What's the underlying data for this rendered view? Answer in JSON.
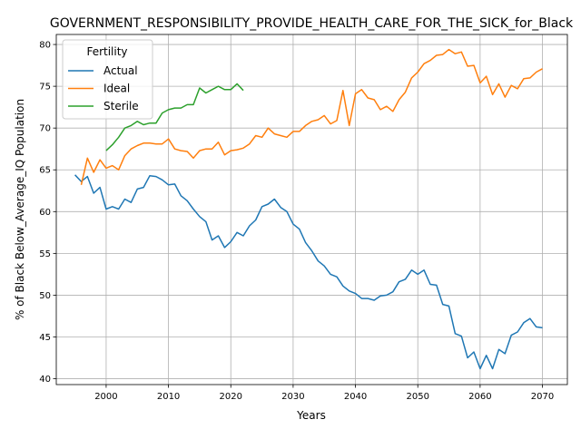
{
  "chart_data": {
    "type": "line",
    "title": "GOVERNMENT_RESPONSIBILITY_PROVIDE_HEALTH_CARE_FOR_THE_SICK_for_Black",
    "xlabel": "Years",
    "ylabel": "% of Black Below_Average_IQ Population",
    "xlim": [
      1992,
      2074
    ],
    "ylim": [
      39.3,
      81.2
    ],
    "xticks": [
      2000,
      2010,
      2020,
      2030,
      2040,
      2050,
      2060,
      2070
    ],
    "yticks": [
      40,
      45,
      50,
      55,
      60,
      65,
      70,
      75,
      80
    ],
    "grid": true,
    "legend": {
      "title": "Fertility",
      "placement": "top-left"
    },
    "series": [
      {
        "name": "Actual",
        "color": "#1f77b4",
        "x": [
          1995,
          1996,
          1997,
          1998,
          1999,
          2000,
          2001,
          2002,
          2003,
          2004,
          2005,
          2006,
          2007,
          2008,
          2009,
          2010,
          2011,
          2012,
          2013,
          2014,
          2015,
          2016,
          2017,
          2018,
          2019,
          2020,
          2021,
          2022,
          2023,
          2024,
          2025,
          2026,
          2027,
          2028,
          2029,
          2030,
          2031,
          2032,
          2033,
          2034,
          2035,
          2036,
          2037,
          2038,
          2039,
          2040,
          2041,
          2042,
          2043,
          2044,
          2045,
          2046,
          2047,
          2048,
          2049,
          2050,
          2051,
          2052,
          2053,
          2054,
          2055,
          2056,
          2057,
          2058,
          2059,
          2060,
          2061,
          2062,
          2063,
          2064,
          2065,
          2066,
          2067,
          2068,
          2069,
          2070
        ],
        "y": [
          64.4,
          63.6,
          64.2,
          62.2,
          62.9,
          60.3,
          60.6,
          60.3,
          61.5,
          61.1,
          62.7,
          62.9,
          64.3,
          64.2,
          63.8,
          63.2,
          63.3,
          61.9,
          61.3,
          60.3,
          59.4,
          58.8,
          56.6,
          57.1,
          55.7,
          56.4,
          57.5,
          57.1,
          58.3,
          59.0,
          60.6,
          60.9,
          61.5,
          60.5,
          60.0,
          58.5,
          57.9,
          56.3,
          55.3,
          54.1,
          53.5,
          52.5,
          52.2,
          51.1,
          50.5,
          50.2,
          49.6,
          49.6,
          49.4,
          49.9,
          50.0,
          50.4,
          51.6,
          51.9,
          53.0,
          52.5,
          53.0,
          51.3,
          51.2,
          48.9,
          48.7,
          45.4,
          45.1,
          42.5,
          43.2,
          41.2,
          42.8,
          41.2,
          43.5,
          43.0,
          45.2,
          45.6,
          46.7,
          47.2,
          46.2,
          46.1
        ]
      },
      {
        "name": "Ideal",
        "color": "#ff7f0e",
        "x": [
          1996,
          1997,
          1998,
          1999,
          2000,
          2001,
          2002,
          2003,
          2004,
          2005,
          2006,
          2007,
          2008,
          2009,
          2010,
          2011,
          2012,
          2013,
          2014,
          2015,
          2016,
          2017,
          2018,
          2019,
          2020,
          2021,
          2022,
          2023,
          2024,
          2025,
          2026,
          2027,
          2028,
          2029,
          2030,
          2031,
          2032,
          2033,
          2034,
          2035,
          2036,
          2037,
          2038,
          2039,
          2040,
          2041,
          2042,
          2043,
          2044,
          2045,
          2046,
          2047,
          2048,
          2049,
          2050,
          2051,
          2052,
          2053,
          2054,
          2055,
          2056,
          2057,
          2058,
          2059,
          2060,
          2061,
          2062,
          2063,
          2064,
          2065,
          2066,
          2067,
          2068,
          2069,
          2070
        ],
        "y": [
          63.2,
          66.4,
          64.7,
          66.2,
          65.2,
          65.5,
          65.0,
          66.7,
          67.5,
          67.9,
          68.2,
          68.2,
          68.1,
          68.1,
          68.7,
          67.5,
          67.3,
          67.2,
          66.4,
          67.3,
          67.5,
          67.5,
          68.3,
          66.8,
          67.3,
          67.4,
          67.6,
          68.1,
          69.1,
          68.9,
          70.0,
          69.3,
          69.1,
          68.9,
          69.6,
          69.6,
          70.3,
          70.8,
          71.0,
          71.5,
          70.5,
          70.9,
          74.5,
          70.3,
          74.1,
          74.6,
          73.6,
          73.4,
          72.2,
          72.6,
          72.0,
          73.4,
          74.3,
          76.0,
          76.7,
          77.7,
          78.1,
          78.7,
          78.8,
          79.4,
          78.9,
          79.1,
          77.4,
          77.5,
          75.4,
          76.2,
          74.0,
          75.3,
          73.7,
          75.1,
          74.7,
          75.9,
          76.0,
          76.7,
          77.1
        ]
      },
      {
        "name": "Sterile",
        "color": "#2ca02c",
        "x": [
          2000,
          2001,
          2002,
          2003,
          2004,
          2005,
          2006,
          2007,
          2008,
          2009,
          2010,
          2011,
          2012,
          2013,
          2014,
          2015,
          2016,
          2017,
          2018,
          2019,
          2020,
          2021,
          2022
        ],
        "y": [
          67.3,
          68.0,
          68.9,
          70.0,
          70.3,
          70.8,
          70.4,
          70.6,
          70.6,
          71.8,
          72.2,
          72.4,
          72.4,
          72.8,
          72.8,
          74.8,
          74.2,
          74.6,
          75.0,
          74.6,
          74.6,
          75.3,
          74.5
        ]
      }
    ]
  }
}
